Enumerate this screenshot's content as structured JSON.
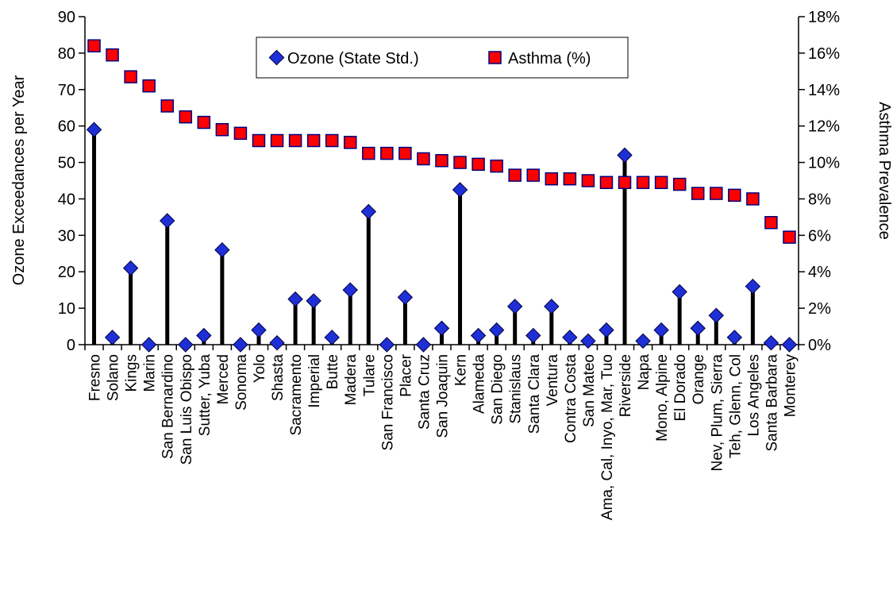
{
  "chart_data": {
    "type": "scatter",
    "title": "",
    "y_left": {
      "label": "Ozone Exceedances per Year",
      "ylim": [
        0,
        90
      ],
      "ticks": [
        "0",
        "10",
        "20",
        "30",
        "40",
        "50",
        "60",
        "70",
        "80",
        "90"
      ]
    },
    "y_right": {
      "label": "Asthma Prevalence",
      "ylim": [
        0,
        18
      ],
      "ticks": [
        "0%",
        "2%",
        "4%",
        "6%",
        "8%",
        "10%",
        "12%",
        "14%",
        "16%",
        "18%"
      ]
    },
    "legend_position": "top-center",
    "categories": [
      "Fresno",
      "Solano",
      "Kings",
      "Marin",
      "San Bernardino",
      "San Luis Obispo",
      "Sutter, Yuba",
      "Merced",
      "Sonoma",
      "Yolo",
      "Shasta",
      "Sacramento",
      "Imperial",
      "Butte",
      "Madera",
      "Tulare",
      "San Francisco",
      "Placer",
      "Santa Cruz",
      "San Joaquin",
      "Kern",
      "Alameda",
      "San Diego",
      "Stanislaus",
      "Santa Clara",
      "Ventura",
      "Contra Costa",
      "San Mateo",
      "Ama, Cal, Inyo, Mar, Tuo",
      "Riverside",
      "Napa",
      "Mono, Alpine",
      "El Dorado",
      "Orange",
      "Nev, Plum, Sierra",
      "Teh, Glenn, Col",
      "Los Angeles",
      "Santa Barbara",
      "Monterey"
    ],
    "series": [
      {
        "name": "Ozone (State Std.)",
        "axis": "left",
        "marker": "diamond",
        "color": "#0000ff",
        "values": [
          59,
          2,
          21,
          0,
          34,
          0,
          2.5,
          26,
          0,
          4,
          0.5,
          12.5,
          12,
          2,
          15,
          36.5,
          0,
          13,
          0,
          4.5,
          42.5,
          2.5,
          4,
          10.5,
          2.5,
          10.5,
          2,
          1,
          4,
          52,
          1,
          4,
          14.5,
          4.5,
          8,
          2,
          16,
          0.5,
          0
        ]
      },
      {
        "name": "Asthma (%)",
        "axis": "right",
        "marker": "square",
        "color": "#ff0000",
        "values": [
          16.4,
          15.9,
          14.7,
          14.2,
          13.1,
          12.5,
          12.2,
          11.8,
          11.6,
          11.2,
          11.2,
          11.2,
          11.2,
          11.2,
          11.1,
          10.5,
          10.5,
          10.5,
          10.2,
          10.1,
          10.0,
          9.9,
          9.8,
          9.3,
          9.3,
          9.1,
          9.1,
          9.0,
          8.9,
          8.9,
          8.9,
          8.9,
          8.8,
          8.3,
          8.3,
          8.2,
          8.0,
          6.7,
          5.9
        ]
      }
    ]
  }
}
